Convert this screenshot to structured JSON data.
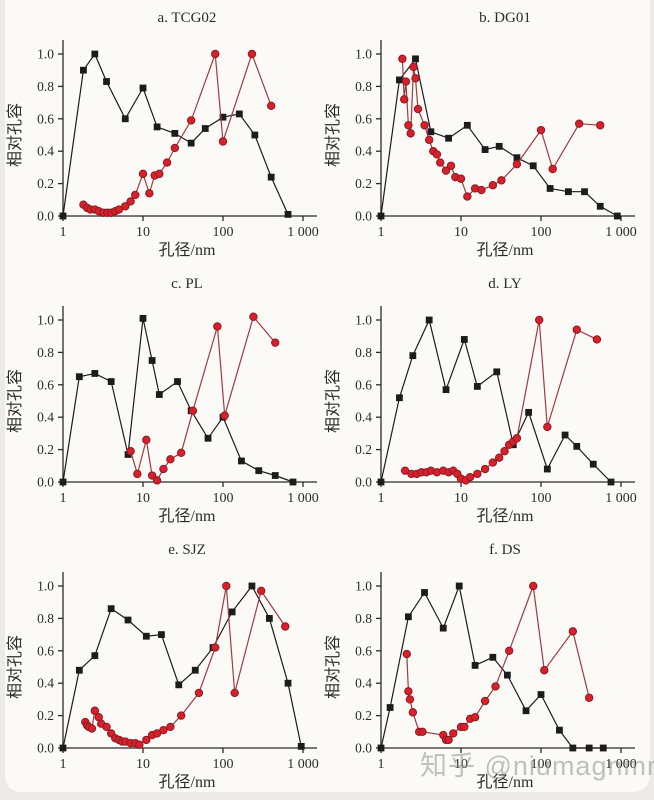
{
  "page": {
    "watermark": "知乎 @niumagnmr"
  },
  "axes": {
    "xlabel": "孔径/nm",
    "ylabel": "相对孔容",
    "xticks": {
      "values": [
        1,
        10,
        100,
        1000
      ],
      "labels": [
        "1",
        "10",
        "100",
        "1 000"
      ]
    },
    "yticks": {
      "values": [
        0,
        0.2,
        0.4,
        0.6,
        0.8,
        1.0
      ],
      "labels": [
        "0.0",
        "0.2",
        "0.4",
        "0.6",
        "0.8",
        "1.0"
      ]
    },
    "xscale": "log",
    "xlim": [
      1,
      1000
    ],
    "ylim": [
      0,
      1.05
    ]
  },
  "colors": {
    "square_series": "#1c1c1c",
    "circle_marker": "#d7202b",
    "circle_edge": "#8c1c22",
    "circle_line": "#a03a40",
    "text": "#2b2b2b"
  },
  "chart_data": [
    {
      "id": "a",
      "type": "line",
      "title": "a. TCG02",
      "xlabel": "孔径/nm",
      "ylabel": "相对孔容",
      "xscale": "log",
      "xlim": [
        1,
        1000
      ],
      "ylim": [
        0,
        1.05
      ],
      "series": [
        {
          "name": "square-series",
          "marker": "square",
          "points": [
            [
              1,
              0.0
            ],
            [
              1.8,
              0.9
            ],
            [
              2.5,
              1.0
            ],
            [
              3.5,
              0.83
            ],
            [
              6,
              0.6
            ],
            [
              10,
              0.79
            ],
            [
              15,
              0.55
            ],
            [
              25,
              0.51
            ],
            [
              40,
              0.45
            ],
            [
              60,
              0.54
            ],
            [
              100,
              0.61
            ],
            [
              160,
              0.63
            ],
            [
              250,
              0.5
            ],
            [
              400,
              0.24
            ],
            [
              650,
              0.01
            ]
          ]
        },
        {
          "name": "circle-series",
          "marker": "circle",
          "points": [
            [
              1.8,
              0.07
            ],
            [
              2,
              0.05
            ],
            [
              2.2,
              0.04
            ],
            [
              2.5,
              0.04
            ],
            [
              2.8,
              0.03
            ],
            [
              3.2,
              0.02
            ],
            [
              3.6,
              0.02
            ],
            [
              4,
              0.02
            ],
            [
              4.5,
              0.03
            ],
            [
              5,
              0.04
            ],
            [
              6,
              0.06
            ],
            [
              7,
              0.09
            ],
            [
              8,
              0.13
            ],
            [
              10,
              0.26
            ],
            [
              12,
              0.14
            ],
            [
              14,
              0.25
            ],
            [
              16,
              0.26
            ],
            [
              20,
              0.33
            ],
            [
              25,
              0.42
            ],
            [
              40,
              0.59
            ],
            [
              80,
              1.0
            ],
            [
              100,
              0.46
            ],
            [
              230,
              1.0
            ],
            [
              400,
              0.68
            ]
          ]
        }
      ]
    },
    {
      "id": "b",
      "type": "line",
      "title": "b. DG01",
      "xlabel": "孔径/nm",
      "ylabel": "相对孔容",
      "xscale": "log",
      "xlim": [
        1,
        1000
      ],
      "ylim": [
        0,
        1.05
      ],
      "series": [
        {
          "name": "square-series",
          "marker": "square",
          "points": [
            [
              1,
              0.0
            ],
            [
              1.7,
              0.84
            ],
            [
              2.7,
              0.97
            ],
            [
              4.2,
              0.52
            ],
            [
              7,
              0.48
            ],
            [
              12,
              0.56
            ],
            [
              20,
              0.41
            ],
            [
              30,
              0.43
            ],
            [
              50,
              0.36
            ],
            [
              80,
              0.31
            ],
            [
              130,
              0.17
            ],
            [
              220,
              0.15
            ],
            [
              350,
              0.15
            ],
            [
              550,
              0.06
            ],
            [
              900,
              0.0
            ]
          ]
        },
        {
          "name": "circle-series",
          "marker": "circle",
          "points": [
            [
              1.85,
              0.97
            ],
            [
              1.95,
              0.72
            ],
            [
              2.05,
              0.83
            ],
            [
              2.2,
              0.56
            ],
            [
              2.35,
              0.51
            ],
            [
              2.55,
              0.92
            ],
            [
              2.7,
              0.85
            ],
            [
              2.9,
              0.66
            ],
            [
              3.5,
              0.56
            ],
            [
              4,
              0.47
            ],
            [
              4.5,
              0.4
            ],
            [
              5,
              0.38
            ],
            [
              5.5,
              0.33
            ],
            [
              6.5,
              0.28
            ],
            [
              7.5,
              0.31
            ],
            [
              8.5,
              0.24
            ],
            [
              10,
              0.23
            ],
            [
              12,
              0.12
            ],
            [
              15,
              0.17
            ],
            [
              18,
              0.16
            ],
            [
              25,
              0.19
            ],
            [
              32,
              0.22
            ],
            [
              50,
              0.32
            ],
            [
              100,
              0.53
            ],
            [
              140,
              0.29
            ],
            [
              300,
              0.57
            ],
            [
              550,
              0.56
            ]
          ]
        }
      ]
    },
    {
      "id": "c",
      "type": "line",
      "title": "c. PL",
      "xlabel": "孔径/nm",
      "ylabel": "相对孔容",
      "xscale": "log",
      "xlim": [
        1,
        1000
      ],
      "ylim": [
        0,
        1.05
      ],
      "series": [
        {
          "name": "square-series",
          "marker": "square",
          "points": [
            [
              1,
              0.0
            ],
            [
              1.6,
              0.65
            ],
            [
              2.5,
              0.67
            ],
            [
              4,
              0.62
            ],
            [
              6.5,
              0.17
            ],
            [
              10,
              1.01
            ],
            [
              13,
              0.75
            ],
            [
              16,
              0.54
            ],
            [
              27,
              0.62
            ],
            [
              40,
              0.44
            ],
            [
              65,
              0.27
            ],
            [
              100,
              0.4
            ],
            [
              170,
              0.13
            ],
            [
              280,
              0.07
            ],
            [
              450,
              0.04
            ],
            [
              750,
              0.0
            ]
          ]
        },
        {
          "name": "circle-series",
          "marker": "circle",
          "points": [
            [
              7,
              0.19
            ],
            [
              8.5,
              0.05
            ],
            [
              11,
              0.26
            ],
            [
              13,
              0.04
            ],
            [
              15,
              0.01
            ],
            [
              18,
              0.08
            ],
            [
              22,
              0.14
            ],
            [
              30,
              0.18
            ],
            [
              42,
              0.44
            ],
            [
              85,
              0.96
            ],
            [
              105,
              0.41
            ],
            [
              240,
              1.02
            ],
            [
              450,
              0.86
            ]
          ]
        }
      ]
    },
    {
      "id": "d",
      "type": "line",
      "title": "d. LY",
      "xlabel": "孔径/nm",
      "ylabel": "相对孔容",
      "xscale": "log",
      "xlim": [
        1,
        1000
      ],
      "ylim": [
        0,
        1.05
      ],
      "series": [
        {
          "name": "square-series",
          "marker": "square",
          "points": [
            [
              1,
              0.0
            ],
            [
              1.7,
              0.52
            ],
            [
              2.5,
              0.78
            ],
            [
              4,
              1.0
            ],
            [
              6.5,
              0.57
            ],
            [
              11,
              0.88
            ],
            [
              16,
              0.59
            ],
            [
              28,
              0.68
            ],
            [
              45,
              0.23
            ],
            [
              70,
              0.43
            ],
            [
              120,
              0.08
            ],
            [
              200,
              0.29
            ],
            [
              280,
              0.22
            ],
            [
              450,
              0.11
            ],
            [
              750,
              0.0
            ]
          ]
        },
        {
          "name": "circle-series",
          "marker": "circle",
          "points": [
            [
              2,
              0.07
            ],
            [
              2.4,
              0.05
            ],
            [
              2.8,
              0.05
            ],
            [
              3.2,
              0.06
            ],
            [
              3.7,
              0.06
            ],
            [
              4.2,
              0.07
            ],
            [
              5,
              0.06
            ],
            [
              6,
              0.07
            ],
            [
              7,
              0.06
            ],
            [
              8,
              0.07
            ],
            [
              9,
              0.05
            ],
            [
              10,
              0.02
            ],
            [
              11.5,
              0.01
            ],
            [
              13,
              0.03
            ],
            [
              16,
              0.05
            ],
            [
              20,
              0.08
            ],
            [
              25,
              0.12
            ],
            [
              30,
              0.15
            ],
            [
              35,
              0.19
            ],
            [
              40,
              0.23
            ],
            [
              45,
              0.25
            ],
            [
              50,
              0.27
            ],
            [
              95,
              1.0
            ],
            [
              120,
              0.34
            ],
            [
              280,
              0.94
            ],
            [
              500,
              0.88
            ]
          ]
        }
      ]
    },
    {
      "id": "e",
      "type": "line",
      "title": "e. SJZ",
      "xlabel": "孔径/nm",
      "ylabel": "相对孔容",
      "xscale": "log",
      "xlim": [
        1,
        1000
      ],
      "ylim": [
        0,
        1.05
      ],
      "series": [
        {
          "name": "square-series",
          "marker": "square",
          "points": [
            [
              1,
              0.0
            ],
            [
              1.6,
              0.48
            ],
            [
              2.5,
              0.57
            ],
            [
              4,
              0.86
            ],
            [
              6.5,
              0.79
            ],
            [
              11,
              0.69
            ],
            [
              17,
              0.7
            ],
            [
              28,
              0.39
            ],
            [
              45,
              0.48
            ],
            [
              75,
              0.62
            ],
            [
              130,
              0.84
            ],
            [
              230,
              1.0
            ],
            [
              380,
              0.8
            ],
            [
              650,
              0.4
            ],
            [
              950,
              0.01
            ]
          ]
        },
        {
          "name": "circle-series",
          "marker": "circle",
          "points": [
            [
              1.9,
              0.16
            ],
            [
              2,
              0.14
            ],
            [
              2.1,
              0.13
            ],
            [
              2.3,
              0.12
            ],
            [
              2.5,
              0.23
            ],
            [
              2.8,
              0.19
            ],
            [
              3,
              0.15
            ],
            [
              3.5,
              0.13
            ],
            [
              4,
              0.09
            ],
            [
              4.5,
              0.06
            ],
            [
              5,
              0.05
            ],
            [
              5.5,
              0.04
            ],
            [
              6,
              0.04
            ],
            [
              7,
              0.03
            ],
            [
              8,
              0.03
            ],
            [
              9,
              0.02
            ],
            [
              11,
              0.05
            ],
            [
              13,
              0.08
            ],
            [
              15,
              0.09
            ],
            [
              18,
              0.11
            ],
            [
              22,
              0.13
            ],
            [
              30,
              0.2
            ],
            [
              50,
              0.34
            ],
            [
              80,
              0.62
            ],
            [
              110,
              1.0
            ],
            [
              140,
              0.34
            ],
            [
              300,
              0.97
            ],
            [
              600,
              0.75
            ]
          ]
        }
      ]
    },
    {
      "id": "f",
      "type": "line",
      "title": "f. DS",
      "xlabel": "孔径/nm",
      "ylabel": "相对孔容",
      "xscale": "log",
      "xlim": [
        1,
        1000
      ],
      "ylim": [
        0,
        1.05
      ],
      "series": [
        {
          "name": "square-series",
          "marker": "square",
          "points": [
            [
              1,
              0.0
            ],
            [
              1.3,
              0.25
            ],
            [
              2.2,
              0.81
            ],
            [
              3.5,
              0.96
            ],
            [
              6,
              0.74
            ],
            [
              9.5,
              1.0
            ],
            [
              15,
              0.51
            ],
            [
              25,
              0.56
            ],
            [
              38,
              0.45
            ],
            [
              65,
              0.23
            ],
            [
              100,
              0.33
            ],
            [
              170,
              0.11
            ],
            [
              250,
              0.0
            ],
            [
              400,
              0.0
            ],
            [
              600,
              0.0
            ]
          ]
        },
        {
          "name": "circle-series",
          "marker": "circle",
          "points": [
            [
              2.1,
              0.58
            ],
            [
              2.2,
              0.35
            ],
            [
              2.3,
              0.3
            ],
            [
              2.5,
              0.22
            ],
            [
              3,
              0.1
            ],
            [
              3.3,
              0.1
            ],
            [
              6,
              0.08
            ],
            [
              6.5,
              0.05
            ],
            [
              7,
              0.05
            ],
            [
              8,
              0.09
            ],
            [
              10,
              0.13
            ],
            [
              11,
              0.13
            ],
            [
              13,
              0.18
            ],
            [
              15,
              0.19
            ],
            [
              20,
              0.29
            ],
            [
              27,
              0.38
            ],
            [
              40,
              0.6
            ],
            [
              80,
              1.0
            ],
            [
              110,
              0.48
            ],
            [
              250,
              0.72
            ],
            [
              400,
              0.31
            ]
          ]
        }
      ]
    }
  ]
}
